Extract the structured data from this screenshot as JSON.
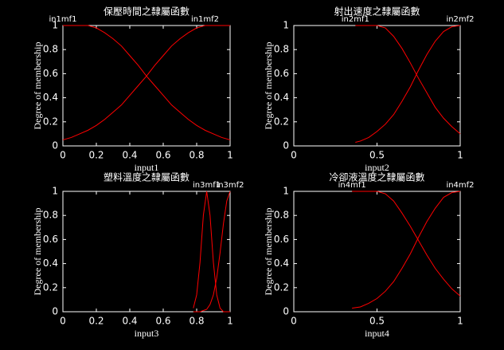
{
  "chart_data": [
    {
      "type": "line",
      "title": "保壓時間之隸屬函數",
      "xlabel": "input1",
      "ylabel": "Degree of membership",
      "x": [
        0,
        0.05,
        0.1,
        0.15,
        0.2,
        0.25,
        0.3,
        0.35,
        0.4,
        0.45,
        0.5,
        0.55,
        0.6,
        0.65,
        0.7,
        0.75,
        0.8,
        0.85,
        0.9,
        0.95,
        1
      ],
      "series": [
        {
          "name": "in1mf1",
          "color": "#ff0000",
          "values": [
            1,
            1,
            1,
            1,
            0.98,
            0.94,
            0.89,
            0.83,
            0.75,
            0.67,
            0.58,
            0.5,
            0.42,
            0.34,
            0.28,
            0.22,
            0.17,
            0.13,
            0.1,
            0.07,
            0.05
          ]
        },
        {
          "name": "in1mf2",
          "color": "#ff0000",
          "values": [
            0.05,
            0.07,
            0.1,
            0.13,
            0.17,
            0.22,
            0.28,
            0.34,
            0.42,
            0.5,
            0.58,
            0.67,
            0.75,
            0.83,
            0.89,
            0.94,
            0.98,
            1,
            1,
            1,
            1
          ]
        }
      ],
      "xlim": [
        0,
        1
      ],
      "ylim": [
        0,
        1
      ],
      "xticks": [
        0,
        0.2,
        0.4,
        0.6,
        0.8,
        1
      ],
      "yticks": [
        0,
        0.2,
        0.4,
        0.6,
        0.8,
        1
      ]
    },
    {
      "type": "line",
      "title": "射出速度之隸屬函數",
      "xlabel": "input2",
      "ylabel": "Degree of membership",
      "x": [
        0.37,
        0.4,
        0.45,
        0.5,
        0.55,
        0.6,
        0.65,
        0.7,
        0.75,
        0.8,
        0.85,
        0.9,
        0.95,
        1
      ],
      "series": [
        {
          "name": "in2mf1",
          "color": "#ff0000",
          "values": [
            1,
            1,
            1,
            1,
            0.98,
            0.91,
            0.81,
            0.69,
            0.56,
            0.44,
            0.32,
            0.23,
            0.16,
            0.1
          ]
        },
        {
          "name": "in2mf2",
          "color": "#ff0000",
          "values": [
            0.03,
            0.04,
            0.07,
            0.12,
            0.18,
            0.26,
            0.37,
            0.49,
            0.63,
            0.76,
            0.87,
            0.95,
            0.99,
            1
          ]
        }
      ],
      "xlim": [
        0,
        1
      ],
      "ylim": [
        0,
        1
      ],
      "xticks": [
        0,
        0.5,
        1
      ],
      "yticks": [
        0,
        0.2,
        0.4,
        0.6,
        0.8,
        1
      ]
    },
    {
      "type": "line",
      "title": "塑料溫度之隸屬函數",
      "xlabel": "input3",
      "ylabel": "Degree of membership",
      "x": [
        0.78,
        0.8,
        0.82,
        0.84,
        0.86,
        0.88,
        0.9,
        0.92,
        0.94,
        0.96,
        0.98,
        1
      ],
      "series": [
        {
          "name": "in3mf1",
          "color": "#ff0000",
          "values": [
            0.03,
            0.14,
            0.41,
            0.8,
            1,
            0.8,
            0.41,
            0.14,
            0.03,
            0,
            0,
            0
          ]
        },
        {
          "name": "in3mf2",
          "color": "#ff0000",
          "values": [
            0,
            0,
            0,
            0.01,
            0.02,
            0.06,
            0.14,
            0.28,
            0.49,
            0.73,
            0.92,
            1
          ]
        }
      ],
      "xlim": [
        0,
        1
      ],
      "ylim": [
        0,
        1
      ],
      "xticks": [
        0,
        0.2,
        0.4,
        0.6,
        0.8,
        1
      ],
      "yticks": [
        0,
        0.2,
        0.4,
        0.6,
        0.8,
        1
      ]
    },
    {
      "type": "line",
      "title": "冷卻液溫度之隸屬函數",
      "xlabel": "input4",
      "ylabel": "Degree of membership",
      "x": [
        0.35,
        0.4,
        0.45,
        0.5,
        0.55,
        0.6,
        0.65,
        0.7,
        0.75,
        0.8,
        0.85,
        0.9,
        0.95,
        1
      ],
      "series": [
        {
          "name": "in4mf1",
          "color": "#ff0000",
          "values": [
            1,
            1,
            1,
            1,
            0.98,
            0.92,
            0.82,
            0.71,
            0.59,
            0.47,
            0.36,
            0.27,
            0.19,
            0.13
          ]
        },
        {
          "name": "in4mf2",
          "color": "#ff0000",
          "values": [
            0.03,
            0.04,
            0.07,
            0.11,
            0.17,
            0.25,
            0.36,
            0.48,
            0.62,
            0.75,
            0.86,
            0.95,
            0.99,
            1
          ]
        }
      ],
      "xlim": [
        0,
        1
      ],
      "ylim": [
        0,
        1
      ],
      "xticks": [
        0,
        0.5,
        1
      ],
      "yticks": [
        0,
        0.2,
        0.4,
        0.6,
        0.8,
        1
      ]
    }
  ]
}
